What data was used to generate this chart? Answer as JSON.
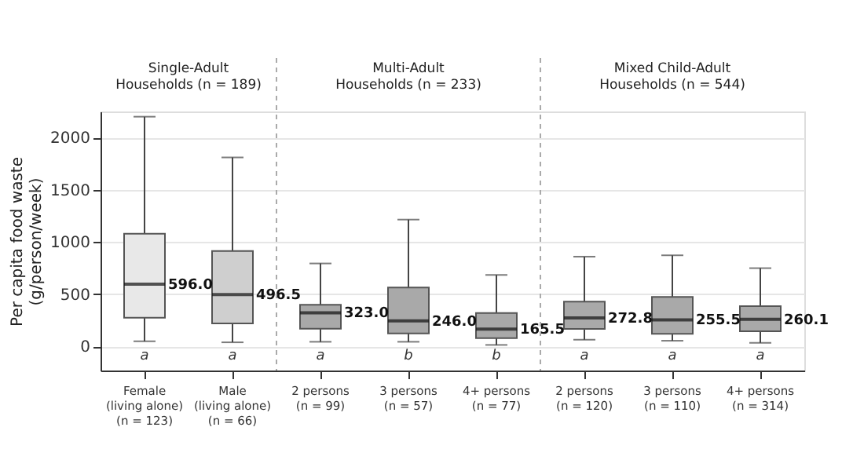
{
  "chart_data": {
    "type": "box",
    "ylabel": "Per capita food waste\n(g/person/week)",
    "categories": [
      "Female\n(living alone)\n(n = 123)",
      "Male\n(living alone)\n(n = 66)",
      "2 persons\n(n = 99)",
      "3 persons\n(n = 57)",
      "4+ persons\n(n = 77)",
      "2 persons\n(n = 120)",
      "3 persons\n(n = 110)",
      "4+ persons\n(n = 314)"
    ],
    "boxes": [
      {
        "low": 50,
        "q1": 275,
        "median": 596.0,
        "q3": 1080,
        "high": 2200
      },
      {
        "low": 40,
        "q1": 220,
        "median": 496.5,
        "q3": 915,
        "high": 1810
      },
      {
        "low": 45,
        "q1": 170,
        "median": 323.0,
        "q3": 400,
        "high": 795
      },
      {
        "low": 45,
        "q1": 125,
        "median": 246.0,
        "q3": 565,
        "high": 1215
      },
      {
        "low": 15,
        "q1": 80,
        "median": 165.5,
        "q3": 320,
        "high": 685
      },
      {
        "low": 65,
        "q1": 168,
        "median": 272.8,
        "q3": 430,
        "high": 860
      },
      {
        "low": 55,
        "q1": 122,
        "median": 255.5,
        "q3": 475,
        "high": 873
      },
      {
        "low": 35,
        "q1": 145,
        "median": 260.1,
        "q3": 387,
        "high": 750
      }
    ],
    "colors": [
      "#e8e8e8",
      "#cfcfcf",
      "#a9a9a9",
      "#a9a9a9",
      "#a9a9a9",
      "#a9a9a9",
      "#a9a9a9",
      "#a9a9a9"
    ],
    "value_labels": [
      "596.0",
      "496.5",
      "323.0",
      "246.0",
      "165.5",
      "272.8",
      "255.5",
      "260.1"
    ],
    "annotations": [
      "Single-Adult\nHouseholds (n = 189)",
      "Multi-Adult\nHouseholds (n = 233)",
      "Mixed Child-Adult\nHouseholds (n = 544)",
      "a",
      "a",
      "a",
      "b",
      "b",
      "a",
      "a",
      "a"
    ],
    "ylim": [
      -230,
      2250
    ],
    "yticks": [
      0,
      500,
      1000,
      1500,
      2000
    ],
    "grid": "y"
  }
}
